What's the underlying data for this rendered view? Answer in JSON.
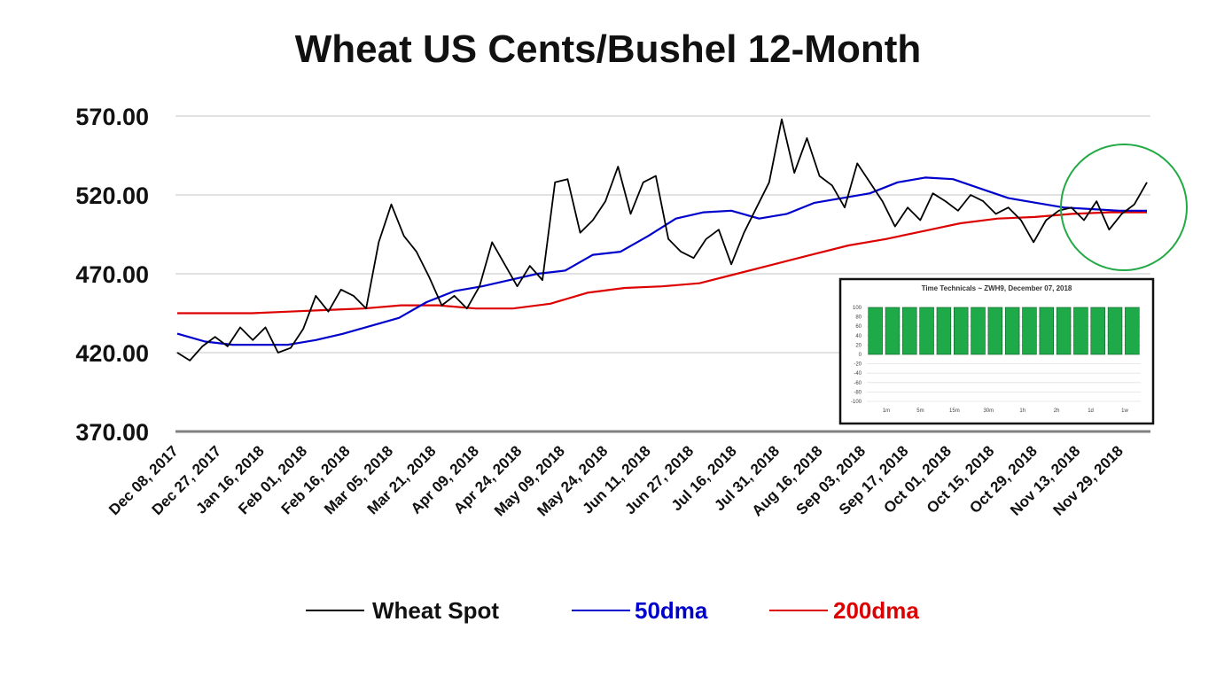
{
  "chart_data": {
    "type": "line",
    "title": "Wheat US Cents/Bushel 12-Month",
    "xlabel": "",
    "ylabel": "",
    "ylim": [
      370,
      570
    ],
    "yticks": [
      "570.00",
      "520.00",
      "470.00",
      "420.00",
      "370.00"
    ],
    "ytick_values": [
      570,
      520,
      470,
      420,
      370
    ],
    "grid": "horizontal",
    "legend_position": "bottom",
    "x_tick_labels": [
      "Dec 08, 2017",
      "Dec 27, 2017",
      "Jan 16, 2018",
      "Feb 01, 2018",
      "Feb 16, 2018",
      "Mar 05, 2018",
      "Mar 21, 2018",
      "Apr 09, 2018",
      "Apr 24, 2018",
      "May 09, 2018",
      "May 24, 2018",
      "Jun 11, 2018",
      "Jun 27, 2018",
      "Jul 16, 2018",
      "Jul 31, 2018",
      "Aug 16, 2018",
      "Sep 03, 2018",
      "Sep 17, 2018",
      "Oct 01, 2018",
      "Oct 15, 2018",
      "Oct 29, 2018",
      "Nov 13, 2018",
      "Nov 29, 2018"
    ],
    "series": [
      {
        "name": "Wheat Spot",
        "color": "#000000",
        "values": [
          420,
          415,
          424,
          430,
          424,
          436,
          428,
          436,
          420,
          423,
          435,
          456,
          446,
          460,
          456,
          448,
          490,
          514,
          494,
          484,
          468,
          450,
          456,
          448,
          462,
          490,
          476,
          462,
          475,
          466,
          528,
          530,
          496,
          504,
          516,
          538,
          508,
          528,
          532,
          492,
          484,
          480,
          492,
          498,
          476,
          496,
          512,
          528,
          568,
          534,
          556,
          532,
          526,
          512,
          540,
          528,
          516,
          500,
          512,
          504,
          521,
          516,
          510,
          520,
          516,
          508,
          512,
          504,
          490,
          504,
          510,
          512,
          504,
          516,
          498,
          508,
          514,
          528
        ]
      },
      {
        "name": "50dma",
        "color": "#0000cc",
        "values": [
          432,
          427,
          425,
          425,
          425,
          428,
          432,
          437,
          442,
          452,
          459,
          462,
          466,
          470,
          472,
          482,
          484,
          494,
          505,
          509,
          510,
          505,
          508,
          515,
          518,
          521,
          528,
          531,
          530,
          524,
          518,
          515,
          512,
          511,
          510,
          510
        ]
      },
      {
        "name": "200dma",
        "color": "#dd0000",
        "values": [
          445,
          445,
          445,
          446,
          447,
          448,
          450,
          450,
          448,
          448,
          451,
          458,
          461,
          462,
          464,
          470,
          476,
          482,
          488,
          492,
          497,
          502,
          505,
          506,
          508,
          509,
          509
        ]
      }
    ],
    "inset": {
      "title": "Time Technicals ~ ZWH9, December 07, 2018",
      "yticks": [
        "100",
        "80",
        "60",
        "40",
        "20",
        "0",
        "-20",
        "-40",
        "-60",
        "-80",
        "-100"
      ],
      "ylim": [
        -100,
        100
      ],
      "bar_values": [
        100,
        100,
        100,
        100,
        100,
        100,
        100,
        100,
        100,
        100,
        100,
        100,
        100,
        100,
        100,
        100
      ],
      "bar_color": "#1faa4a",
      "xticks": [
        "1m",
        "5m",
        "15m",
        "30m",
        "1h",
        "2h",
        "1d",
        "1w"
      ]
    },
    "annotation": {
      "type": "circle",
      "color": "#22aa44"
    }
  }
}
